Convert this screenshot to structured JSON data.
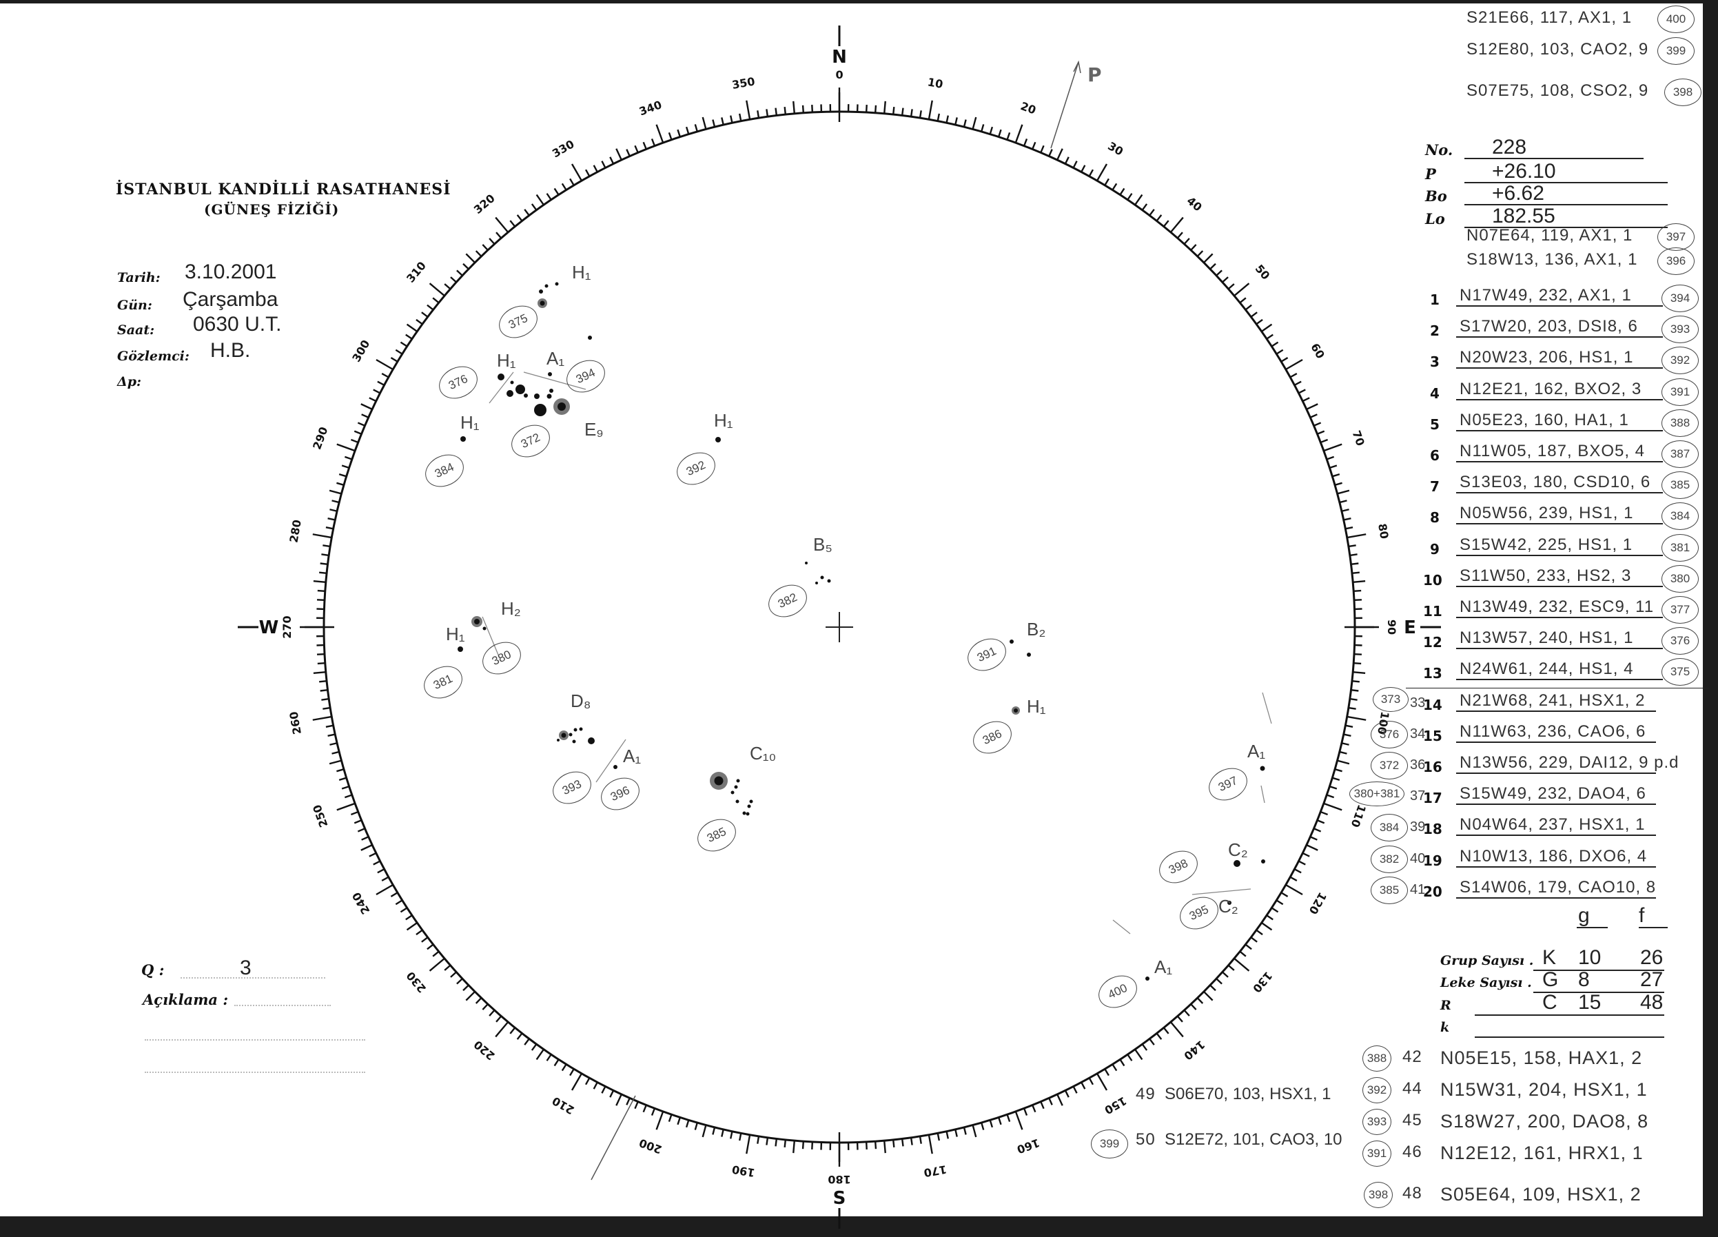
{
  "header": {
    "institution": "İSTANBUL KANDİLLİ RASATHANESİ",
    "department": "(GÜNEŞ FİZİĞİ)",
    "fields": [
      {
        "label": "Tarih:",
        "value": "3.10.2001"
      },
      {
        "label": "Gün:",
        "value": "Çarşamba"
      },
      {
        "label": "Saat:",
        "value": "0630 U.T."
      },
      {
        "label": "Gözlemci:",
        "value": "H.B."
      },
      {
        "label": "Δp:",
        "value": ""
      }
    ]
  },
  "footer_left": {
    "q_label": "Q :",
    "q_value": "3",
    "aciklama_label": "Açıklama :"
  },
  "parameters": [
    {
      "label": "No.",
      "value": "228"
    },
    {
      "label": "P",
      "value": "+26.10"
    },
    {
      "label": "Bo",
      "value": "+6.62"
    },
    {
      "label": "Lo",
      "value": "182.55"
    }
  ],
  "top_notes": [
    {
      "text": "S21E66, 117, AX1, 1",
      "ref": "400"
    },
    {
      "text": "S12E80, 103, CAO2, 9",
      "ref": "399"
    },
    {
      "text": "S07E75, 108, CSO2, 9",
      "ref": "398"
    }
  ],
  "pre_table_notes": [
    {
      "text": "N07E64, 119, AX1, 1",
      "ref": "397"
    },
    {
      "text": "S18W13, 136, AX1, 1",
      "ref": "396"
    }
  ],
  "groups_table": [
    {
      "n": "1",
      "entry": "N17W49, 232, AX1, 1",
      "ref": "394"
    },
    {
      "n": "2",
      "entry": "S17W20, 203, DSI8, 6",
      "ref": "393"
    },
    {
      "n": "3",
      "entry": "N20W23, 206, HS1, 1",
      "ref": "392"
    },
    {
      "n": "4",
      "entry": "N12E21, 162, BXO2, 3",
      "ref": "391"
    },
    {
      "n": "5",
      "entry": "N05E23, 160, HA1, 1",
      "ref": "388"
    },
    {
      "n": "6",
      "entry": "N11W05, 187, BXO5, 4",
      "ref": "387"
    },
    {
      "n": "7",
      "entry": "S13E03, 180, CSD10, 6",
      "ref": "385"
    },
    {
      "n": "8",
      "entry": "N05W56, 239, HS1, 1",
      "ref": "384"
    },
    {
      "n": "9",
      "entry": "S15W42, 225, HS1, 1",
      "ref": "381"
    },
    {
      "n": "10",
      "entry": "S11W50, 233, HS2, 3",
      "ref": "380"
    },
    {
      "n": "11",
      "entry": "N13W49, 232, ESC9, 11",
      "ref": "377"
    },
    {
      "n": "12",
      "entry": "N13W57, 240, HS1, 1",
      "ref": "376"
    },
    {
      "n": "13",
      "entry": "N24W61, 244, HS1, 4",
      "ref": "375"
    },
    {
      "n": "14",
      "entry": "N21W68, 241, HSX1, 2",
      "ref": "373",
      "side": "33"
    },
    {
      "n": "15",
      "entry": "N11W63, 236, CAO6, 6",
      "ref": "376",
      "side": "34"
    },
    {
      "n": "16",
      "entry": "N13W56, 229, DAI12, 9 p.d",
      "ref": "372",
      "side": "36"
    },
    {
      "n": "17",
      "entry": "S15W49, 232, DAO4, 6",
      "ref": "380+381",
      "side": "37"
    },
    {
      "n": "18",
      "entry": "N04W64, 237, HSX1, 1",
      "ref": "384",
      "side": "39"
    },
    {
      "n": "19",
      "entry": "N10W13, 186, DXO6, 4",
      "ref": "382",
      "side": "40"
    },
    {
      "n": "20",
      "entry": "S14W06, 179, CAO10, 8",
      "ref": "385",
      "side": "41"
    }
  ],
  "summary": {
    "col_g": "g",
    "col_f": "f",
    "rows": [
      {
        "label": "Grup Sayısı .",
        "letter": "K",
        "g": "10",
        "f": "26"
      },
      {
        "label": "Leke Sayısı .",
        "letter": "G",
        "g": "8",
        "f": "27"
      },
      {
        "label": "R",
        "letter": "C",
        "g": "15",
        "f": "48"
      },
      {
        "label": "k",
        "letter": "",
        "g": "",
        "f": ""
      }
    ]
  },
  "bottom_notes": [
    {
      "ref": "388",
      "n": "42",
      "text": "N05E15, 158, HAX1, 2"
    },
    {
      "ref": "392",
      "n": "44",
      "text": "N15W31, 204, HSX1, 1"
    },
    {
      "ref": "393",
      "n": "45",
      "text": "S18W27, 200, DAO8, 8"
    },
    {
      "ref": "391",
      "n": "46",
      "text": "N12E12, 161, HRX1, 1"
    },
    {
      "ref": "398",
      "n": "48",
      "text": "S05E64, 109, HSX1, 2"
    }
  ],
  "middle_notes": [
    {
      "ref": "",
      "n": "49",
      "text": "S06E70, 103, HSX1, 1"
    },
    {
      "ref": "399",
      "n": "50",
      "text": "S12E72, 101, CAO3, 10"
    }
  ],
  "disk": {
    "cardinals": {
      "north": "N",
      "south": "S",
      "east": "E",
      "west": "W"
    },
    "tick_labels": [
      "0",
      "10",
      "20",
      "30",
      "40",
      "50",
      "60",
      "70",
      "80",
      "90",
      "100",
      "110",
      "120",
      "130",
      "140",
      "150",
      "160",
      "170",
      "180",
      "190",
      "200",
      "210",
      "220",
      "230",
      "240",
      "250",
      "260",
      "270",
      "280",
      "290",
      "300",
      "310",
      "320",
      "330",
      "340",
      "350"
    ],
    "axis_label": "P",
    "groups": [
      {
        "label": "H₁",
        "ref": "375"
      },
      {
        "label": "E₉",
        "ref": "372"
      },
      {
        "label": "A₁",
        "ref": "394"
      },
      {
        "label": "H₁",
        "ref": "376"
      },
      {
        "label": "H₁",
        "ref": "384"
      },
      {
        "label": "H₁",
        "ref": "392"
      },
      {
        "label": "B₅",
        "ref": "382"
      },
      {
        "label": "H₂",
        "ref": "380"
      },
      {
        "label": "H₁",
        "ref": "381"
      },
      {
        "label": "D₈",
        "ref": "393"
      },
      {
        "label": "A₁",
        "ref": "396"
      },
      {
        "label": "C₁₀",
        "ref": "385"
      },
      {
        "label": "B₂",
        "ref": "391"
      },
      {
        "label": "H₁",
        "ref": "386"
      },
      {
        "label": "A₁",
        "ref": "397"
      },
      {
        "label": "C₂",
        "ref": "398"
      },
      {
        "label": "C₂",
        "ref": "395"
      },
      {
        "label": "A₁",
        "ref": "400"
      }
    ]
  }
}
